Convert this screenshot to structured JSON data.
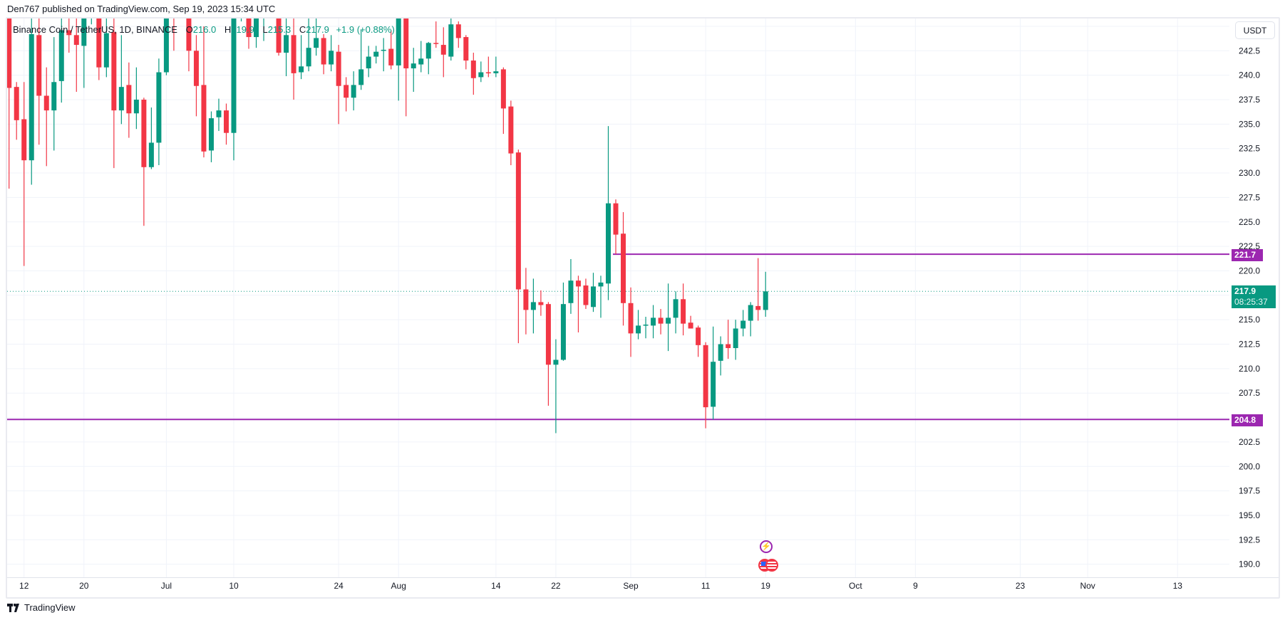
{
  "publisher_line": "Den767 published on TradingView.com, Sep 19, 2023 15:34 UTC",
  "legend": {
    "symbol": "Binance Coin / TetherUS, 1D, BINANCE",
    "o_label": "O",
    "o": "216.0",
    "h_label": "H",
    "h": "219.9",
    "l_label": "L",
    "l": "215.3",
    "c_label": "C",
    "c": "217.9",
    "change": "+1.9 (+0.88%)"
  },
  "currency": "USDT",
  "tags": {
    "resistance": "221.7",
    "support": "204.8",
    "last_price": "217.9",
    "countdown": "08:25:37"
  },
  "footer": {
    "brand": "TradingView"
  },
  "events": {
    "bolt_icon": "lightning-event-icon",
    "flag_icon": "us-flag-event-icon"
  },
  "colors": {
    "up": "#089981",
    "down": "#f23645",
    "level": "#9c27b0",
    "grid": "#f0f3fa",
    "text": "#131722"
  },
  "chart_data": {
    "type": "candlestick",
    "title": "Binance Coin / TetherUS, 1D, BINANCE",
    "ylabel": "USDT",
    "ylim": [
      189.0,
      246.0
    ],
    "grid": true,
    "y_ticks": [
      "242.5",
      "240.0",
      "237.5",
      "235.0",
      "232.5",
      "230.0",
      "227.5",
      "225.0",
      "222.5",
      "220.0",
      "215.0",
      "212.5",
      "210.0",
      "207.5",
      "202.5",
      "200.0",
      "197.5",
      "195.0",
      "192.5",
      "190.0"
    ],
    "x_ticks": [
      {
        "label": "12",
        "day": 2
      },
      {
        "label": "20",
        "day": 10
      },
      {
        "label": "Jul",
        "day": 21
      },
      {
        "label": "10",
        "day": 30
      },
      {
        "label": "24",
        "day": 44
      },
      {
        "label": "Aug",
        "day": 52
      },
      {
        "label": "14",
        "day": 65
      },
      {
        "label": "22",
        "day": 73
      },
      {
        "label": "Sep",
        "day": 83
      },
      {
        "label": "11",
        "day": 93
      },
      {
        "label": "19",
        "day": 101
      },
      {
        "label": "Oct",
        "day": 113
      },
      {
        "label": "9",
        "day": 121
      },
      {
        "label": "23",
        "day": 135
      },
      {
        "label": "Nov",
        "day": 144
      },
      {
        "label": "13",
        "day": 156
      }
    ],
    "horizontal_levels": [
      {
        "value": 221.7,
        "from_day": 81
      },
      {
        "value": 204.8,
        "from_day": 0
      }
    ],
    "last_price": 217.9,
    "ohlc_fields": [
      "open",
      "high",
      "low",
      "close"
    ],
    "candles": [
      [
        246.5,
        247.5,
        228.4,
        238.7
      ],
      [
        238.8,
        239.3,
        233.4,
        235.4
      ],
      [
        235.5,
        239.3,
        220.5,
        231.3
      ],
      [
        231.3,
        247.0,
        228.8,
        244.2
      ],
      [
        244.1,
        245.8,
        232.9,
        237.9
      ],
      [
        237.9,
        240.8,
        230.7,
        236.4
      ],
      [
        236.4,
        243.9,
        232.3,
        239.3
      ],
      [
        239.4,
        246.5,
        237.2,
        244.6
      ],
      [
        244.6,
        246.5,
        242.3,
        244.1
      ],
      [
        244.1,
        246.2,
        238.3,
        243.1
      ],
      [
        243.0,
        247.5,
        238.7,
        246.3
      ],
      [
        246.3,
        248.0,
        245.2,
        247.2
      ],
      [
        247.2,
        248.0,
        239.5,
        240.8
      ],
      [
        240.8,
        246.5,
        239.8,
        244.3
      ],
      [
        244.4,
        247.0,
        230.5,
        236.4
      ],
      [
        236.4,
        244.1,
        235.0,
        238.8
      ],
      [
        239.0,
        241.3,
        233.6,
        236.1
      ],
      [
        236.1,
        240.8,
        234.5,
        237.5
      ],
      [
        237.5,
        237.7,
        224.6,
        230.6
      ],
      [
        230.6,
        236.7,
        230.4,
        233.1
      ],
      [
        233.1,
        241.7,
        230.8,
        240.3
      ],
      [
        240.3,
        249.0,
        240.0,
        247.5
      ],
      [
        247.5,
        249.0,
        242.5,
        246.8
      ],
      [
        246.8,
        249.5,
        245.8,
        248.0
      ],
      [
        248.0,
        249.0,
        240.4,
        242.5
      ],
      [
        242.5,
        244.1,
        235.8,
        238.9
      ],
      [
        239.0,
        245.0,
        231.6,
        232.2
      ],
      [
        232.3,
        236.3,
        231.1,
        235.6
      ],
      [
        235.7,
        237.6,
        234.3,
        236.4
      ],
      [
        236.4,
        237.1,
        232.9,
        234.1
      ],
      [
        234.1,
        248.5,
        231.3,
        247.0
      ],
      [
        247.0,
        249.5,
        245.5,
        248.5
      ],
      [
        248.5,
        249.5,
        242.7,
        243.9
      ],
      [
        243.9,
        247.5,
        242.8,
        246.8
      ],
      [
        246.8,
        248.5,
        243.5,
        247.5
      ],
      [
        247.5,
        248.5,
        245.8,
        246.5
      ],
      [
        246.5,
        247.5,
        242.0,
        242.3
      ],
      [
        242.3,
        246.5,
        239.9,
        244.1
      ],
      [
        244.1,
        246.0,
        237.5,
        240.2
      ],
      [
        240.3,
        244.1,
        239.6,
        240.9
      ],
      [
        240.9,
        246.0,
        240.4,
        242.8
      ],
      [
        242.8,
        246.4,
        242.0,
        243.8
      ],
      [
        243.8,
        244.2,
        240.1,
        241.1
      ],
      [
        241.1,
        244.1,
        240.4,
        242.5
      ],
      [
        242.4,
        243.1,
        235.0,
        238.9
      ],
      [
        239.0,
        239.8,
        236.3,
        237.7
      ],
      [
        237.7,
        240.4,
        236.4,
        239.0
      ],
      [
        239.0,
        244.6,
        238.5,
        240.6
      ],
      [
        240.7,
        243.0,
        239.8,
        241.9
      ],
      [
        241.9,
        243.0,
        241.2,
        242.4
      ],
      [
        242.5,
        243.8,
        240.4,
        242.6
      ],
      [
        242.7,
        244.6,
        240.6,
        241.0
      ],
      [
        241.0,
        248.5,
        237.4,
        248.0
      ],
      [
        248.0,
        249.0,
        235.8,
        240.7
      ],
      [
        240.7,
        242.8,
        238.3,
        241.2
      ],
      [
        241.1,
        243.5,
        240.3,
        241.7
      ],
      [
        241.7,
        243.4,
        240.1,
        243.3
      ],
      [
        243.3,
        245.5,
        242.8,
        243.2
      ],
      [
        243.1,
        244.9,
        239.8,
        242.1
      ],
      [
        241.9,
        246.5,
        241.5,
        245.2
      ],
      [
        245.2,
        245.5,
        242.8,
        243.8
      ],
      [
        243.9,
        244.1,
        240.6,
        241.5
      ],
      [
        241.5,
        242.3,
        238.0,
        239.7
      ],
      [
        239.8,
        241.4,
        239.3,
        240.3
      ],
      [
        240.3,
        241.9,
        239.8,
        240.2
      ],
      [
        240.2,
        241.9,
        239.8,
        240.4
      ],
      [
        240.6,
        240.8,
        234.0,
        236.6
      ],
      [
        236.8,
        237.4,
        230.8,
        232.0
      ],
      [
        232.1,
        232.4,
        212.6,
        218.1
      ],
      [
        218.1,
        220.3,
        213.5,
        216.0
      ],
      [
        216.0,
        219.2,
        213.6,
        216.8
      ],
      [
        216.8,
        218.0,
        215.4,
        216.5
      ],
      [
        216.6,
        216.8,
        206.2,
        210.4
      ],
      [
        210.4,
        213.0,
        203.4,
        210.9
      ],
      [
        210.9,
        218.8,
        210.8,
        216.6
      ],
      [
        216.7,
        221.2,
        215.6,
        219.0
      ],
      [
        219.0,
        219.5,
        213.7,
        218.4
      ],
      [
        218.5,
        219.2,
        216.1,
        216.5
      ],
      [
        216.3,
        219.8,
        215.8,
        218.4
      ],
      [
        218.4,
        219.5,
        215.2,
        218.8
      ],
      [
        218.7,
        234.8,
        217.0,
        226.9
      ],
      [
        226.9,
        227.3,
        221.7,
        223.7
      ],
      [
        223.8,
        226.0,
        214.4,
        216.7
      ],
      [
        216.7,
        218.3,
        211.2,
        213.6
      ],
      [
        213.6,
        216.0,
        213.0,
        214.4
      ],
      [
        214.4,
        215.3,
        213.1,
        214.5
      ],
      [
        214.4,
        216.5,
        213.1,
        215.2
      ],
      [
        215.2,
        216.1,
        213.5,
        214.6
      ],
      [
        214.6,
        218.7,
        211.8,
        215.2
      ],
      [
        215.2,
        217.9,
        213.6,
        217.1
      ],
      [
        217.1,
        218.7,
        213.4,
        214.6
      ],
      [
        214.7,
        215.4,
        214.1,
        214.1
      ],
      [
        214.2,
        214.4,
        211.2,
        212.4
      ],
      [
        212.4,
        212.7,
        203.9,
        206.05
      ],
      [
        206.1,
        214.3,
        204.8,
        210.7
      ],
      [
        210.8,
        213.3,
        209.3,
        212.5
      ],
      [
        212.5,
        215.0,
        211.0,
        212.1
      ],
      [
        212.1,
        215.0,
        210.9,
        214.1
      ],
      [
        214.1,
        216.0,
        213.3,
        214.9
      ],
      [
        214.9,
        216.8,
        213.3,
        216.5
      ],
      [
        216.4,
        221.3,
        214.9,
        216.0
      ],
      [
        216.0,
        219.9,
        215.3,
        217.9
      ]
    ]
  }
}
